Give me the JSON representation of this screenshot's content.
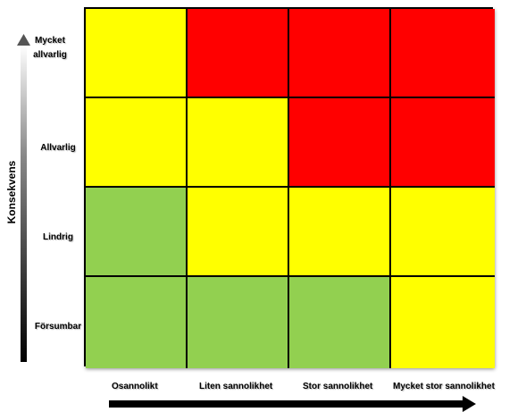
{
  "y_axis": {
    "title": "Konsekvens",
    "levels": [
      "Mycket allvarlig",
      "Allvarlig",
      "Lindrig",
      "Försumbar"
    ]
  },
  "x_axis": {
    "levels": [
      "Osannolikt",
      "Liten sannolikhet",
      "Stor sannolikhet",
      "Mycket stor sannolikhet"
    ]
  },
  "colors": {
    "green": "#92d050",
    "yellow": "#ffff00",
    "red": "#ff0000"
  },
  "matrix": [
    [
      "yellow",
      "red",
      "red",
      "red"
    ],
    [
      "yellow",
      "yellow",
      "red",
      "red"
    ],
    [
      "green",
      "yellow",
      "yellow",
      "yellow"
    ],
    [
      "green",
      "green",
      "green",
      "yellow"
    ]
  ]
}
